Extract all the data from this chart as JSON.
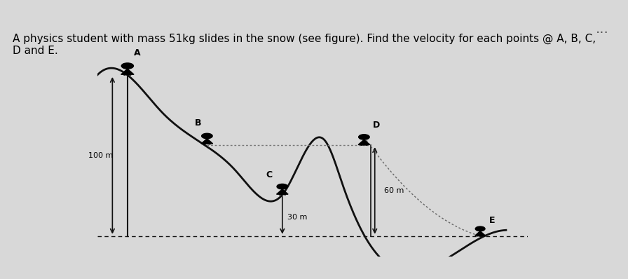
{
  "title_text": "A physics student with mass 51kg slides in the snow (see figure). Find the velocity for each points @ A, B, C,\nD and E.",
  "title_fontsize": 11,
  "fig_width": 8.96,
  "fig_height": 3.98,
  "bg_color": "#d8d8d8",
  "box_bg_color": "#ffffff",
  "box_color": "#333333",
  "label_A": "A",
  "label_B": "B",
  "label_C": "C",
  "label_D": "D",
  "label_E": "E",
  "label_100m": "100 m",
  "label_60m": "60 m",
  "label_30m": "30 m",
  "dots_color": "#555555",
  "curve_color": "#111111",
  "ground_color": "#111111",
  "arrow_color": "#111111",
  "points_ellipsis_color": "#333333"
}
